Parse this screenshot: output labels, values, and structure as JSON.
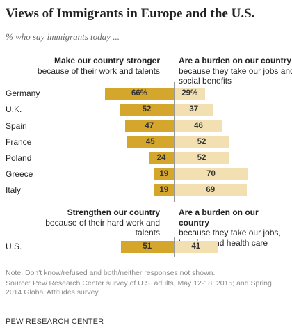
{
  "title": "Views of Immigrants in Europe and the U.S.",
  "subtitle": "% who say immigrants today ...",
  "europe_headers": {
    "left_bold": "Make our country stronger",
    "left_rest": " because of their work and talents",
    "right_bold": "Are a burden on our country",
    "right_rest": "because they take our jobs and social benefits"
  },
  "us_headers": {
    "left_bold": "Strengthen our country",
    "left_rest": "because of their hard work and talents",
    "right_bold": "Are a burden on our country",
    "right_rest": "because they take our jobs, housing and health care"
  },
  "chart_data": {
    "type": "bar",
    "orientation": "horizontal-diverging",
    "categories": [
      "Germany",
      "U.K.",
      "Spain",
      "France",
      "Poland",
      "Greece",
      "Italy",
      "U.S."
    ],
    "series": [
      {
        "name": "Make our country stronger / Strengthen our country",
        "values": [
          66,
          52,
          47,
          45,
          24,
          19,
          19,
          51
        ]
      },
      {
        "name": "Are a burden on our country",
        "values": [
          29,
          37,
          46,
          52,
          52,
          70,
          69,
          41
        ]
      }
    ],
    "labels": {
      "stronger": [
        "66%",
        "52",
        "47",
        "45",
        "24",
        "19",
        "19",
        "51"
      ],
      "burden": [
        "29%",
        "37",
        "46",
        "52",
        "52",
        "70",
        "69",
        "41"
      ]
    },
    "colors": {
      "stronger": "#d4a72c",
      "burden": "#f2e0b3"
    }
  },
  "note": "Note: Don't know/refused and both/neither responses not shown.",
  "source": "Source: Pew Research Center survey of U.S. adults, May 12-18, 2015; and Spring 2014 Global Attitudes survey.",
  "org": "PEW RESEARCH CENTER"
}
